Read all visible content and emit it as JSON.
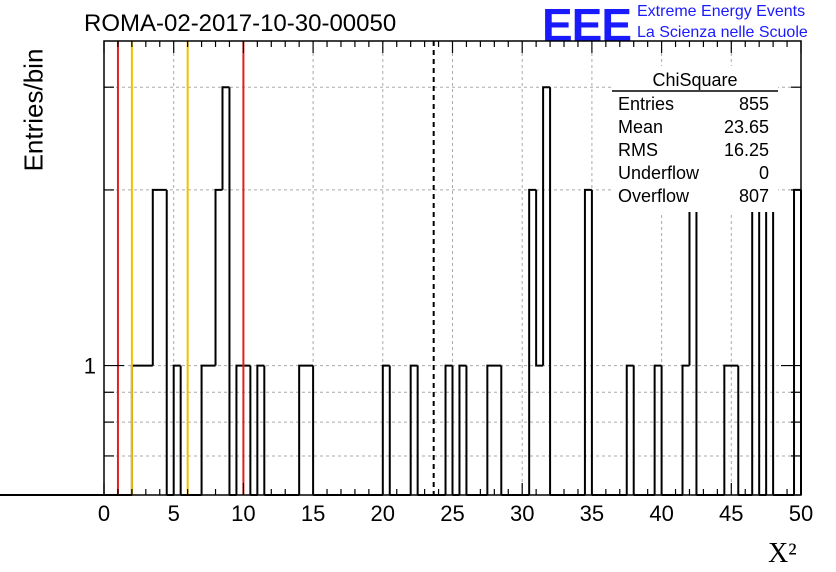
{
  "header": {
    "title": "ROMA-02-2017-10-30-00050",
    "logo_text": "EEE",
    "logo_line1": "Extreme Energy Events",
    "logo_line2": "La Scienza nelle Scuole"
  },
  "colors": {
    "logo": "#1a1aff",
    "red_line": "#e02020",
    "yellow_line": "#f0c000"
  },
  "chart_data": {
    "type": "histogram",
    "title": "ROMA-02-2017-10-30-00050",
    "xlabel": "X²",
    "ylabel": "Entries/bin",
    "xlim": [
      0,
      50
    ],
    "y_scale": "log",
    "ylim": [
      0.6,
      3.6
    ],
    "xticks": [
      0,
      5,
      10,
      15,
      20,
      25,
      30,
      35,
      40,
      45,
      50
    ],
    "yticks": [
      1
    ],
    "grid": true,
    "bin_width": 0.5,
    "bins": [
      {
        "x0": 2.0,
        "x1": 3.5,
        "y": 1
      },
      {
        "x0": 3.5,
        "x1": 4.5,
        "y": 2
      },
      {
        "x0": 5.0,
        "x1": 5.5,
        "y": 1
      },
      {
        "x0": 7.0,
        "x1": 8.0,
        "y": 1
      },
      {
        "x0": 8.0,
        "x1": 8.5,
        "y": 2
      },
      {
        "x0": 8.5,
        "x1": 9.0,
        "y": 3
      },
      {
        "x0": 9.5,
        "x1": 10.5,
        "y": 1
      },
      {
        "x0": 11.0,
        "x1": 11.5,
        "y": 1
      },
      {
        "x0": 14.0,
        "x1": 15.0,
        "y": 1
      },
      {
        "x0": 20.0,
        "x1": 20.5,
        "y": 1
      },
      {
        "x0": 22.0,
        "x1": 22.5,
        "y": 1
      },
      {
        "x0": 24.5,
        "x1": 25.0,
        "y": 1
      },
      {
        "x0": 25.5,
        "x1": 26.0,
        "y": 1
      },
      {
        "x0": 27.5,
        "x1": 28.5,
        "y": 1
      },
      {
        "x0": 30.5,
        "x1": 31.0,
        "y": 2
      },
      {
        "x0": 31.0,
        "x1": 31.5,
        "y": 1
      },
      {
        "x0": 31.5,
        "x1": 32.0,
        "y": 3
      },
      {
        "x0": 34.5,
        "x1": 35.0,
        "y": 2
      },
      {
        "x0": 37.5,
        "x1": 38.0,
        "y": 1
      },
      {
        "x0": 39.5,
        "x1": 40.0,
        "y": 1
      },
      {
        "x0": 41.5,
        "x1": 42.0,
        "y": 1
      },
      {
        "x0": 42.0,
        "x1": 42.5,
        "y": 2
      },
      {
        "x0": 44.5,
        "x1": 45.5,
        "y": 1
      },
      {
        "x0": 46.5,
        "x1": 47.0,
        "y": 2
      },
      {
        "x0": 47.5,
        "x1": 48.0,
        "y": 2
      },
      {
        "x0": 49.5,
        "x1": 50.0,
        "y": 2
      }
    ],
    "vertical_lines": [
      {
        "x": 1.0,
        "color": "red"
      },
      {
        "x": 2.0,
        "color": "yellow"
      },
      {
        "x": 6.0,
        "color": "yellow"
      },
      {
        "x": 10.0,
        "color": "red"
      },
      {
        "x": 23.65,
        "color": "black",
        "style": "dashed"
      }
    ],
    "stats_box": {
      "title": "ChiSquare",
      "rows": [
        {
          "label": "Entries",
          "value": "855"
        },
        {
          "label": "Mean",
          "value": "23.65"
        },
        {
          "label": "RMS",
          "value": "16.25"
        },
        {
          "label": "Underflow",
          "value": "0"
        },
        {
          "label": "Overflow",
          "value": "807"
        }
      ]
    }
  }
}
